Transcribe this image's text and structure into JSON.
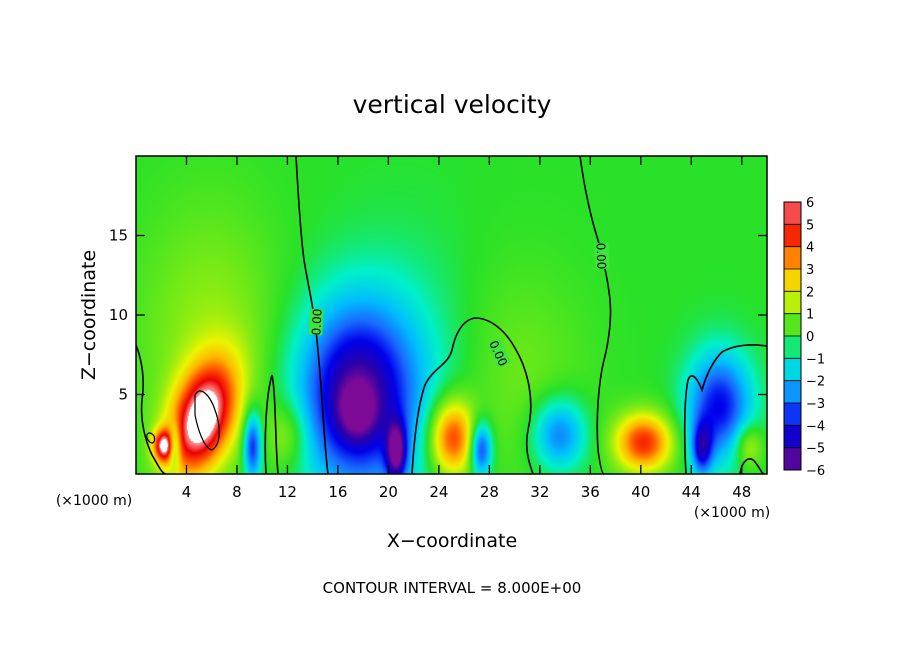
{
  "chart_data": {
    "type": "heatmap",
    "title": "vertical velocity",
    "xlabel": "X−coordinate",
    "ylabel": "Z−coordinate",
    "x_unit": "(×1000 m)",
    "x_unit_right": "(×1000 m)",
    "xlim": [
      0,
      50
    ],
    "ylim": [
      0,
      20
    ],
    "x_ticks": [
      4,
      8,
      12,
      16,
      20,
      24,
      28,
      32,
      36,
      40,
      44,
      48
    ],
    "x_tick_labels": [
      "4",
      "8",
      "12",
      "16",
      "20",
      "24",
      "28",
      "32",
      "36",
      "40",
      "44",
      "48"
    ],
    "y_ticks": [
      5,
      10,
      15
    ],
    "y_tick_labels": [
      "5",
      "10",
      "15"
    ],
    "colorbar": {
      "ticks": [
        6,
        5,
        4,
        3,
        2,
        1,
        0,
        -1,
        -2,
        -3,
        -4,
        -5,
        -6
      ],
      "tick_labels": [
        "6",
        "5",
        "4",
        "3",
        "2",
        "1",
        "0",
        "−1",
        "−2",
        "−3",
        "−4",
        "−5",
        "−6"
      ],
      "range": [
        -6,
        6
      ]
    },
    "contour_label": "0.00",
    "footer": "CONTOUR INTERVAL = 8.000E+00",
    "features": [
      {
        "x": 5.2,
        "z": 3.5,
        "value": 6.5,
        "sx": 1.6,
        "sz": 2.6,
        "rot": -0.45
      },
      {
        "x": 2.2,
        "z": 1.8,
        "value": 5.0,
        "sx": 0.6,
        "sz": 0.7,
        "rot": 0
      },
      {
        "x": 17.3,
        "z": 5.0,
        "value": -5.0,
        "sx": 3.2,
        "sz": 4.0,
        "rot": 0
      },
      {
        "x": 17.5,
        "z": 4.0,
        "value": -2.0,
        "sx": 1.0,
        "sz": 1.2,
        "rot": 0
      },
      {
        "x": 20.6,
        "z": 1.4,
        "value": -4.5,
        "sx": 0.55,
        "sz": 1.3,
        "rot": 0
      },
      {
        "x": 9.2,
        "z": 1.8,
        "value": -4.0,
        "sx": 0.5,
        "sz": 1.5,
        "rot": 0
      },
      {
        "x": 3.0,
        "z": 1.8,
        "value": -3.5,
        "sx": 0.35,
        "sz": 0.9,
        "rot": 0
      },
      {
        "x": 25.0,
        "z": 2.3,
        "value": 4.5,
        "sx": 1.3,
        "sz": 1.7,
        "rot": 0
      },
      {
        "x": 27.3,
        "z": 1.6,
        "value": -4.0,
        "sx": 0.6,
        "sz": 1.2,
        "rot": 0
      },
      {
        "x": 33.5,
        "z": 2.5,
        "value": -3.0,
        "sx": 1.5,
        "sz": 1.6,
        "rot": 0
      },
      {
        "x": 40.2,
        "z": 2.0,
        "value": 4.5,
        "sx": 1.6,
        "sz": 1.3,
        "rot": 0
      },
      {
        "x": 46.2,
        "z": 4.3,
        "value": -4.0,
        "sx": 1.8,
        "sz": 2.4,
        "rot": 0
      },
      {
        "x": 44.8,
        "z": 1.6,
        "value": -3.5,
        "sx": 0.6,
        "sz": 1.2,
        "rot": 0
      },
      {
        "x": 5.8,
        "z": 8.5,
        "value": 1.2,
        "sx": 4.0,
        "sz": 6.0,
        "rot": 0
      },
      {
        "x": 21.5,
        "z": 5.5,
        "value": -1.0,
        "sx": 4.0,
        "sz": 6.0,
        "rot": 0
      },
      {
        "x": 30.0,
        "z": 6.0,
        "value": 0.8,
        "sx": 4.0,
        "sz": 5.0,
        "rot": 0
      },
      {
        "x": 12.0,
        "z": 2.5,
        "value": 1.5,
        "sx": 1.2,
        "sz": 1.5,
        "rot": 0
      },
      {
        "x": 48.5,
        "z": 1.8,
        "value": 2.0,
        "sx": 0.8,
        "sz": 1.0,
        "rot": 0
      }
    ]
  }
}
